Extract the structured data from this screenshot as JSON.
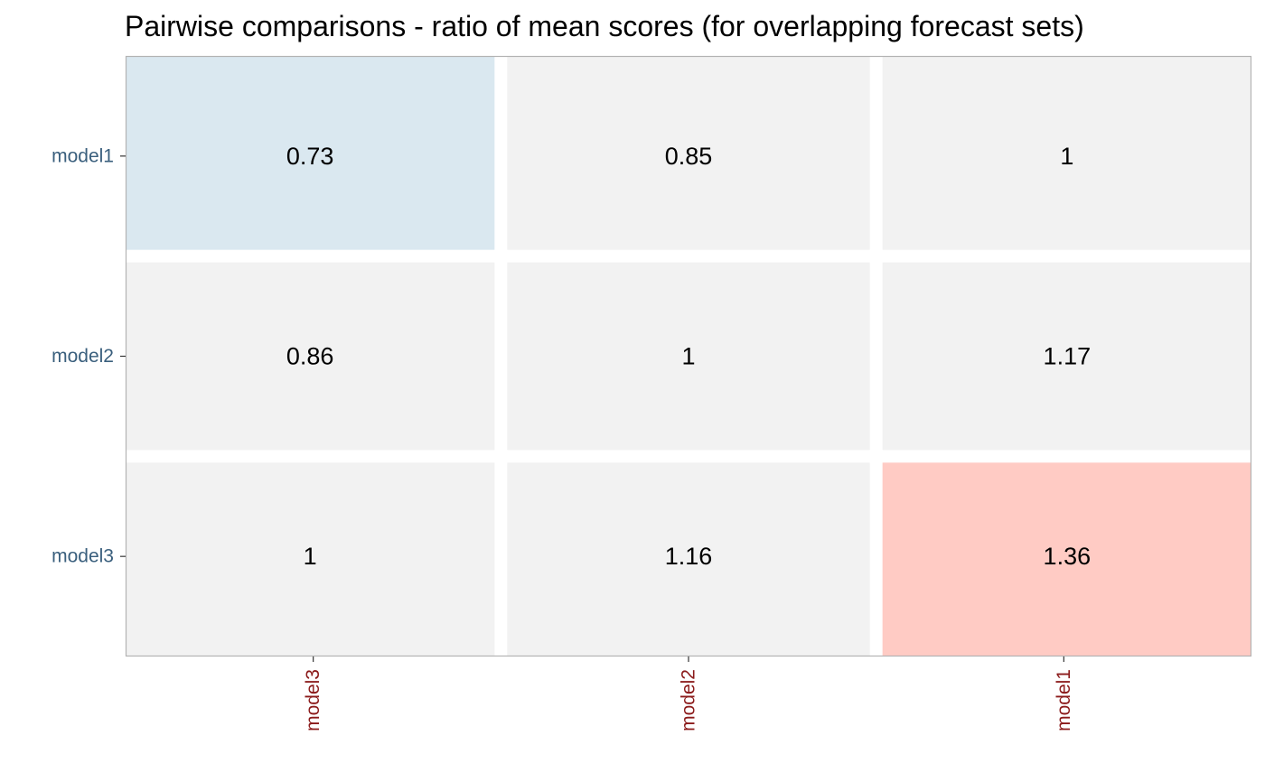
{
  "chart_data": {
    "type": "heatmap",
    "title": "Pairwise comparisons - ratio of mean scores (for overlapping forecast sets)",
    "x_categories": [
      "model3",
      "model2",
      "model1"
    ],
    "y_categories": [
      "model1",
      "model2",
      "model3"
    ],
    "values": [
      [
        0.73,
        0.85,
        1
      ],
      [
        0.86,
        1,
        1.17
      ],
      [
        1,
        1.16,
        1.36
      ]
    ],
    "cell_labels": [
      [
        "0.73",
        "0.85",
        "1"
      ],
      [
        "0.86",
        "1",
        "1.17"
      ],
      [
        "1",
        "1.16",
        "1.36"
      ]
    ],
    "colors": {
      "low": "#dae8f0",
      "neutral": "#f2f2f2",
      "high": "#ffcbc4",
      "y_tick_text": "#3a5f7d",
      "x_tick_text": "#8b1a1a",
      "panel_border": "#b3b3b3",
      "gap": "#ffffff"
    }
  }
}
